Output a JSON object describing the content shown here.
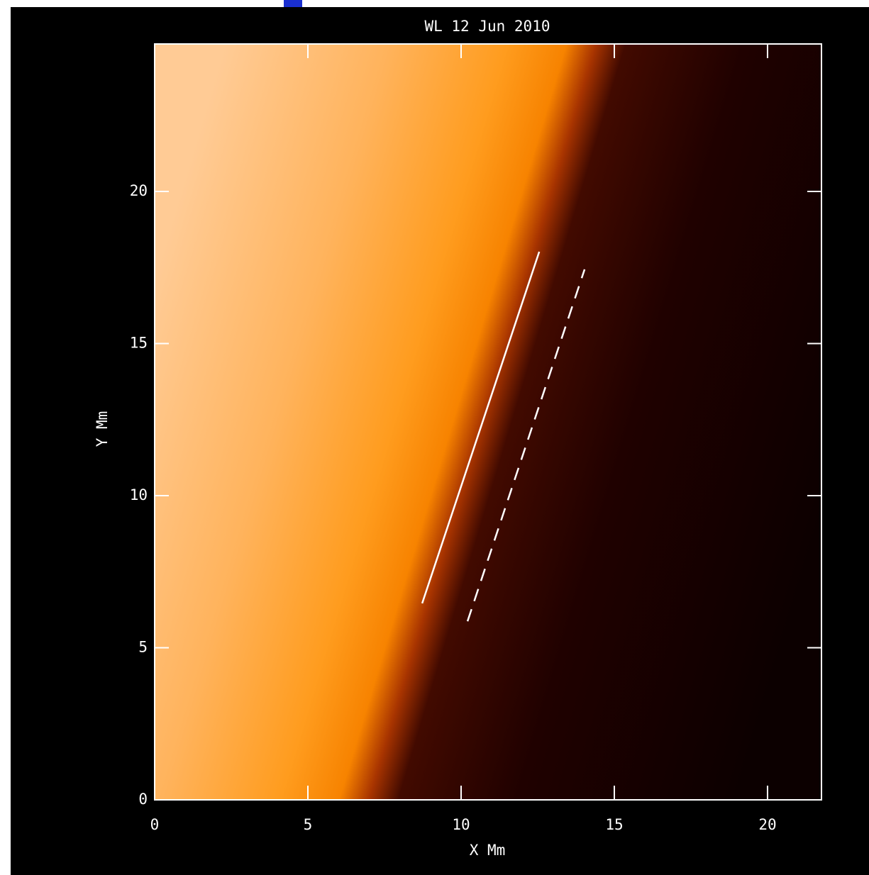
{
  "chart_data": {
    "type": "line",
    "title": "WL 12 Jun 2010",
    "xlabel": "X Mm",
    "ylabel": "Y Mm",
    "xlim": [
      0,
      21.76
    ],
    "ylim": [
      0,
      24.85
    ],
    "xticks": [
      0,
      5,
      10,
      15,
      20
    ],
    "yticks": [
      0,
      5,
      10,
      15,
      20
    ],
    "series": [
      {
        "color": "#ffffff",
        "linestyle": "solid",
        "x": [
          8.73,
          12.55
        ],
        "y": [
          6.46,
          18.02
        ]
      },
      {
        "color": "#ffffff",
        "linestyle": "dashed",
        "x": [
          10.21,
          14.03
        ],
        "y": [
          5.87,
          17.44
        ]
      }
    ]
  }
}
